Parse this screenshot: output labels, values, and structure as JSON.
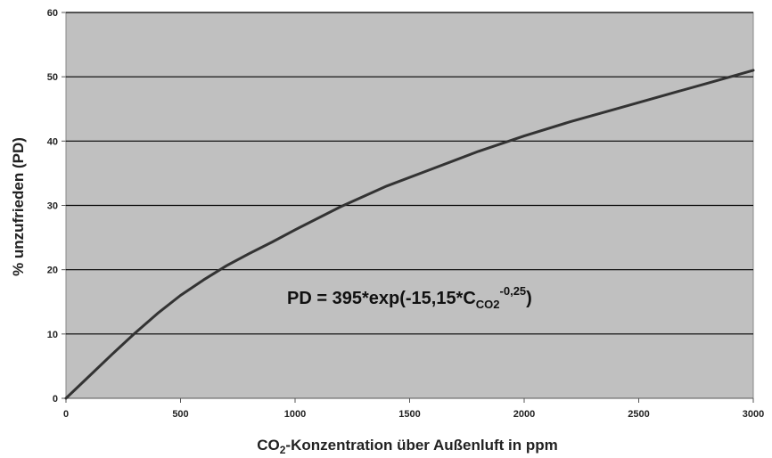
{
  "chart_data": {
    "type": "line",
    "x": [
      0,
      100,
      200,
      300,
      400,
      500,
      600,
      700,
      800,
      900,
      1000,
      1200,
      1400,
      1600,
      1800,
      2000,
      2200,
      2400,
      2600,
      2800,
      3000
    ],
    "series": [
      {
        "values": [
          0,
          3.4,
          6.8,
          10.1,
          13.2,
          16.0,
          18.4,
          20.6,
          22.5,
          24.3,
          26.2,
          29.8,
          33.0,
          35.7,
          38.4,
          40.8,
          43.0,
          45.0,
          47.0,
          49.0,
          51.0
        ]
      }
    ],
    "xlabel": {
      "pre": "CO",
      "sub": "2",
      "post": "-Konzentration über Außenluft in ppm"
    },
    "ylabel": "% unzufrieden (PD)",
    "xticks": [
      "0",
      "500",
      "1000",
      "1500",
      "2000",
      "2500",
      "3000"
    ],
    "yticks": [
      "0",
      "10",
      "20",
      "30",
      "40",
      "50",
      "60"
    ],
    "xlim": [
      0,
      3000
    ],
    "ylim": [
      0,
      60
    ],
    "grid": true,
    "annotation": {
      "main": "PD = 395*exp(-15,15*C",
      "sub": "CO2",
      "sup": "-0,25",
      "close": ")"
    },
    "colors": {
      "plot_background": "#c0c0c0",
      "line": "#333333",
      "gridline": "#000000",
      "frame": "#888888"
    }
  }
}
